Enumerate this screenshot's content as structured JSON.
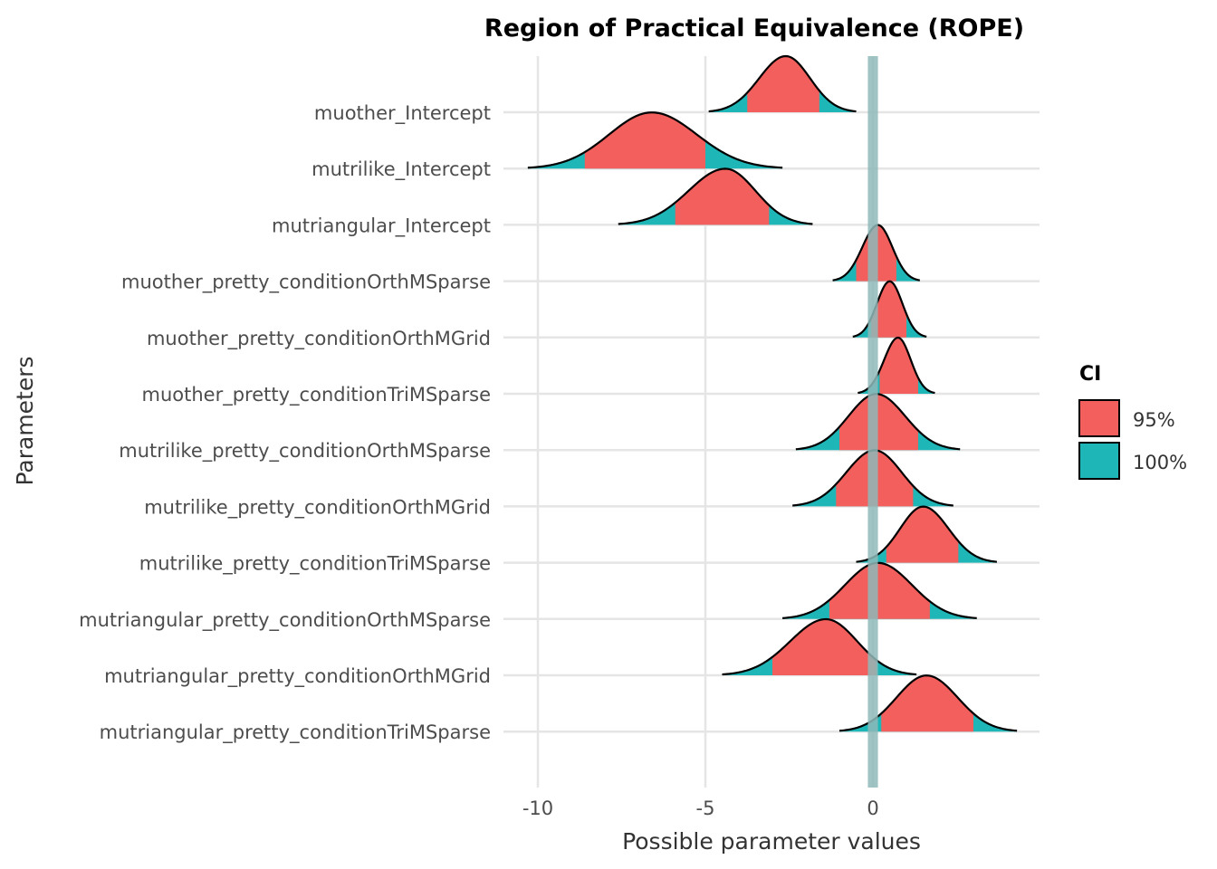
{
  "chart_data": {
    "type": "ridgeline",
    "title": "Region of Practical Equivalence (ROPE)",
    "xlabel": "Possible parameter values",
    "ylabel": "Parameters",
    "xlim": [
      -10.6,
      4.5
    ],
    "xticks": [
      -10,
      -5,
      0
    ],
    "x_tick_labels": [
      "-10",
      "-5",
      "0"
    ],
    "grid": true,
    "rope": [
      -0.15,
      0.15
    ],
    "rope_color": "#8fb8b9",
    "legend": {
      "title": "CI",
      "position": "right",
      "items": [
        {
          "label": "95%",
          "color": "#f25f5c"
        },
        {
          "label": "100%",
          "color": "#1fb6b8"
        }
      ]
    },
    "parameters": [
      {
        "name": "muother_Intercept",
        "mode": -2.6,
        "min": -4.9,
        "max": -0.5,
        "ci95": [
          -3.75,
          -1.6
        ]
      },
      {
        "name": "mutrilike_Intercept",
        "mode": -6.6,
        "min": -10.3,
        "max": -2.7,
        "ci95": [
          -8.6,
          -5.0
        ]
      },
      {
        "name": "mutriangular_Intercept",
        "mode": -4.4,
        "min": -7.6,
        "max": -1.8,
        "ci95": [
          -5.9,
          -3.1
        ]
      },
      {
        "name": "muother_pretty_conditionOrthMSparse",
        "mode": 0.15,
        "min": -1.2,
        "max": 1.4,
        "ci95": [
          -0.5,
          0.7
        ]
      },
      {
        "name": "muother_pretty_conditionOrthMGrid",
        "mode": 0.5,
        "min": -0.6,
        "max": 1.6,
        "ci95": [
          -0.05,
          1.0
        ]
      },
      {
        "name": "muother_pretty_conditionTriMSparse",
        "mode": 0.75,
        "min": -0.45,
        "max": 1.85,
        "ci95": [
          0.2,
          1.35
        ]
      },
      {
        "name": "mutrilike_pretty_conditionOrthMSparse",
        "mode": 0.1,
        "min": -2.3,
        "max": 2.6,
        "ci95": [
          -1.0,
          1.35
        ]
      },
      {
        "name": "mutrilike_pretty_conditionOrthMGrid",
        "mode": 0.05,
        "min": -2.4,
        "max": 2.4,
        "ci95": [
          -1.1,
          1.2
        ]
      },
      {
        "name": "mutrilike_pretty_conditionTriMSparse",
        "mode": 1.5,
        "min": -0.5,
        "max": 3.7,
        "ci95": [
          0.4,
          2.55
        ]
      },
      {
        "name": "mutriangular_pretty_conditionOrthMSparse",
        "mode": 0.15,
        "min": -2.7,
        "max": 3.1,
        "ci95": [
          -1.3,
          1.7
        ]
      },
      {
        "name": "mutriangular_pretty_conditionOrthMGrid",
        "mode": -1.4,
        "min": -4.5,
        "max": 1.3,
        "ci95": [
          -3.0,
          0.1
        ]
      },
      {
        "name": "mutriangular_pretty_conditionTriMSparse",
        "mode": 1.6,
        "min": -1.0,
        "max": 4.3,
        "ci95": [
          0.25,
          3.0
        ]
      }
    ]
  }
}
